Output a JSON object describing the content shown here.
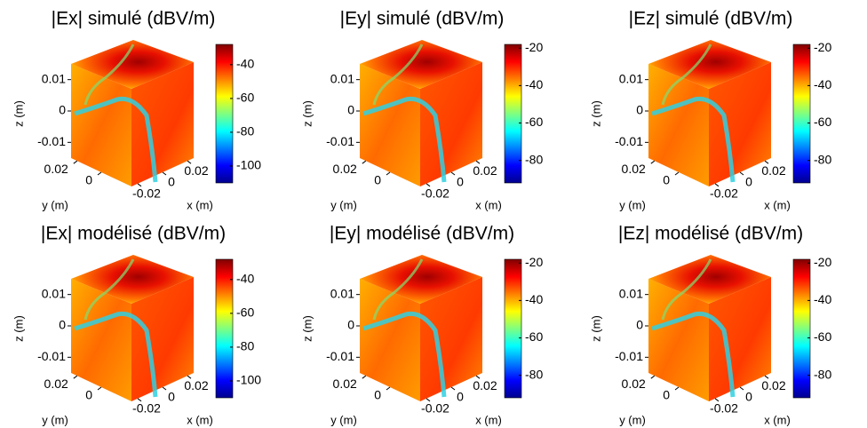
{
  "chart_data": [
    {
      "type": "volume",
      "title": "|Ex| simulé (dBV/m)",
      "xlabel": "x (m)",
      "ylabel": "y (m)",
      "zlabel": "z (m)",
      "xlim": [
        -0.025,
        0.025
      ],
      "ylim": [
        -0.025,
        0.025
      ],
      "zlim": [
        -0.015,
        0.015
      ],
      "xticks": [
        -0.02,
        0,
        0.02
      ],
      "yticks": [
        0.02,
        0
      ],
      "zticks": [
        0.01,
        0,
        -0.01
      ],
      "clim": [
        -110,
        -28
      ],
      "cticks": [
        -40,
        -60,
        -80,
        -100
      ],
      "colormap": "jet"
    },
    {
      "type": "volume",
      "title": "|Ey| simulé (dBV/m)",
      "xlabel": "x (m)",
      "ylabel": "y (m)",
      "zlabel": "z (m)",
      "xlim": [
        -0.025,
        0.025
      ],
      "ylim": [
        -0.025,
        0.025
      ],
      "zlim": [
        -0.015,
        0.015
      ],
      "xticks": [
        -0.02,
        0,
        0.02
      ],
      "yticks": [
        0.02,
        0
      ],
      "zticks": [
        0.01,
        0,
        -0.01
      ],
      "clim": [
        -92,
        -18
      ],
      "cticks": [
        -20,
        -40,
        -60,
        -80
      ],
      "colormap": "jet"
    },
    {
      "type": "volume",
      "title": "|Ez| simulé (dBV/m)",
      "xlabel": "x (m)",
      "ylabel": "y (m)",
      "zlabel": "z (m)",
      "xlim": [
        -0.025,
        0.025
      ],
      "ylim": [
        -0.025,
        0.025
      ],
      "zlim": [
        -0.015,
        0.015
      ],
      "xticks": [
        -0.02,
        0,
        0.02
      ],
      "yticks": [
        0.02,
        0
      ],
      "zticks": [
        0.01,
        0,
        -0.01
      ],
      "clim": [
        -92,
        -18
      ],
      "cticks": [
        -20,
        -40,
        -60,
        -80
      ],
      "colormap": "jet"
    },
    {
      "type": "volume",
      "title": "|Ex| modélisé (dBV/m)",
      "xlabel": "x (m)",
      "ylabel": "y (m)",
      "zlabel": "z (m)",
      "xlim": [
        -0.025,
        0.025
      ],
      "ylim": [
        -0.025,
        0.025
      ],
      "zlim": [
        -0.015,
        0.015
      ],
      "xticks": [
        -0.02,
        0,
        0.02
      ],
      "yticks": [
        0.02,
        0
      ],
      "zticks": [
        0.01,
        0,
        -0.01
      ],
      "clim": [
        -110,
        -28
      ],
      "cticks": [
        -40,
        -60,
        -80,
        -100
      ],
      "colormap": "jet"
    },
    {
      "type": "volume",
      "title": "|Ey| modélisé (dBV/m)",
      "xlabel": "x (m)",
      "ylabel": "y (m)",
      "zlabel": "z (m)",
      "xlim": [
        -0.025,
        0.025
      ],
      "ylim": [
        -0.025,
        0.025
      ],
      "zlim": [
        -0.015,
        0.015
      ],
      "xticks": [
        -0.02,
        0,
        0.02
      ],
      "yticks": [
        0.02,
        0
      ],
      "zticks": [
        0.01,
        0,
        -0.01
      ],
      "clim": [
        -92,
        -18
      ],
      "cticks": [
        -20,
        -40,
        -60,
        -80
      ],
      "colormap": "jet"
    },
    {
      "type": "volume",
      "title": "|Ez| modélisé (dBV/m)",
      "xlabel": "x (m)",
      "ylabel": "y (m)",
      "zlabel": "z (m)",
      "xlim": [
        -0.025,
        0.025
      ],
      "ylim": [
        -0.025,
        0.025
      ],
      "zlim": [
        -0.015,
        0.015
      ],
      "xticks": [
        -0.02,
        0,
        0.02
      ],
      "yticks": [
        0.02,
        0
      ],
      "zticks": [
        0.01,
        0,
        -0.01
      ],
      "clim": [
        -92,
        -18
      ],
      "cticks": [
        -20,
        -40,
        -60,
        -80
      ],
      "colormap": "jet"
    }
  ]
}
